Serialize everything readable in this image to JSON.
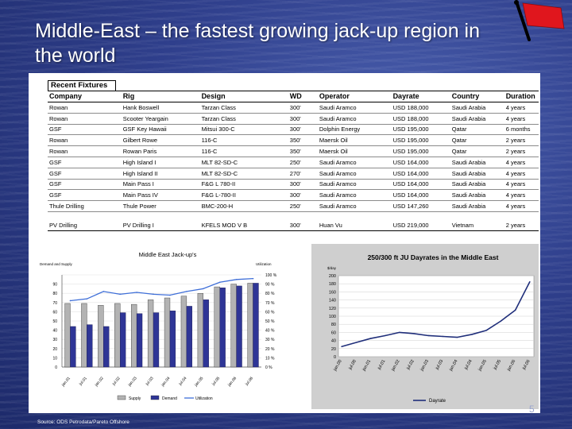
{
  "slide": {
    "title": "Middle-East – the fastest growing jack-up region in the world",
    "source": "Source: ODS Petrodata/Pareto Offshore",
    "page_number": "5"
  },
  "fixtures": {
    "heading": "Recent Fixtures",
    "columns": [
      "Company",
      "Rig",
      "Design",
      "WD",
      "Operator",
      "Dayrate",
      "Country",
      "Duration"
    ],
    "rows": [
      [
        "Rowan",
        "Hank Boswell",
        "Tarzan Class",
        "300'",
        "Saudi Aramco",
        "USD 188,000",
        "Saudi Arabia",
        "4 years"
      ],
      [
        "Rowan",
        "Scooter Yeargain",
        "Tarzan Class",
        "300'",
        "Saudi Aramco",
        "USD 188,000",
        "Saudi Arabia",
        "4 years"
      ],
      [
        "GSF",
        "GSF Key Hawaii",
        "Mitsui 300-C",
        "300'",
        "Dolphin Energy",
        "USD 195,000",
        "Qatar",
        "6 months"
      ],
      [
        "Rowan",
        "Gilbert Rowe",
        "116-C",
        "350'",
        "Maersk Oil",
        "USD 195,000",
        "Qatar",
        "2 years"
      ],
      [
        "Rowan",
        "Rowan Paris",
        "116-C",
        "350'",
        "Maersk Oil",
        "USD 195,000",
        "Qatar",
        "2 years"
      ],
      [
        "GSF",
        "High Island I",
        "MLT 82-SD-C",
        "250'",
        "Saudi Aramco",
        "USD 164,000",
        "Saudi Arabia",
        "4 years"
      ],
      [
        "GSF",
        "High Island II",
        "MLT 82-SD-C",
        "270'",
        "Saudi Aramco",
        "USD 164,000",
        "Saudi Arabia",
        "4 years"
      ],
      [
        "GSF",
        "Main Pass I",
        "F&G L 780-II",
        "300'",
        "Saudi Aramco",
        "USD 164,000",
        "Saudi Arabia",
        "4 years"
      ],
      [
        "GSF",
        "Main Pass IV",
        "F&G L-780-II",
        "300'",
        "Saudi Aramco",
        "USD 164,000",
        "Saudi Arabia",
        "4 years"
      ],
      [
        "Thule Drilling",
        "Thule Power",
        "BMC-200-H",
        "250'",
        "Saudi Aramco",
        "USD 147,260",
        "Saudi Arabia",
        "4 years"
      ]
    ],
    "separate_row": [
      "PV Drilling",
      "PV Drilling I",
      "KFELS MOD V B",
      "300'",
      "Huan Vu",
      "USD 219,000",
      "Vietnam",
      "2 years"
    ]
  },
  "chart_data": [
    {
      "type": "bar",
      "title": "Middle East Jack-up's",
      "ylabel": "Demand and Supply",
      "y2label": "Utilization",
      "categories": [
        "jan.01",
        "jul.01",
        "jan.02",
        "jul.02",
        "jan.03",
        "jul.03",
        "jan.04",
        "jul.04",
        "jan.05",
        "jul.05",
        "jan.06",
        "jul.06"
      ],
      "ylim": [
        0,
        100
      ],
      "yticks": [
        0,
        10,
        20,
        30,
        40,
        50,
        60,
        70,
        80,
        90,
        100
      ],
      "y2ticks": [
        "0 %",
        "10 %",
        "20 %",
        "30 %",
        "40 %",
        "50 %",
        "60 %",
        "70 %",
        "80 %",
        "90 %",
        "100 %"
      ],
      "series": [
        {
          "name": "Supply",
          "kind": "bar",
          "color": "#b3b3b3",
          "values": [
            69,
            69,
            67,
            69,
            68,
            73,
            75,
            77,
            80,
            87,
            90,
            91
          ]
        },
        {
          "name": "Demand",
          "kind": "bar",
          "color": "#2e3596",
          "values": [
            44,
            46,
            44,
            59,
            58,
            59,
            61,
            66,
            73,
            86,
            88,
            91
          ]
        },
        {
          "name": "Utilization",
          "kind": "line",
          "color": "#3f6fd8",
          "values": [
            72,
            74,
            82,
            79,
            81,
            79,
            78,
            82,
            85,
            92,
            95,
            96
          ]
        }
      ],
      "legend": "bottom"
    },
    {
      "type": "line",
      "title": "250/300 ft JU Dayrates in the Middle East",
      "ylabel": "$/day",
      "categories": [
        "jan.00",
        "jul.00",
        "jan.01",
        "jul.01",
        "jan.02",
        "jul.02",
        "jan.03",
        "jul.03",
        "jan.04",
        "jul.04",
        "jan.05",
        "jul.05",
        "jan.06",
        "jul.06"
      ],
      "ylim": [
        0,
        200
      ],
      "yticks": [
        0,
        20,
        40,
        60,
        80,
        100,
        120,
        140,
        160,
        180,
        200
      ],
      "series": [
        {
          "name": "Dayrate",
          "color": "#1f2e7a",
          "values": [
            25,
            35,
            45,
            52,
            60,
            57,
            52,
            50,
            48,
            55,
            65,
            88,
            115,
            185
          ]
        }
      ],
      "legend": "bottom",
      "grid": true
    }
  ]
}
